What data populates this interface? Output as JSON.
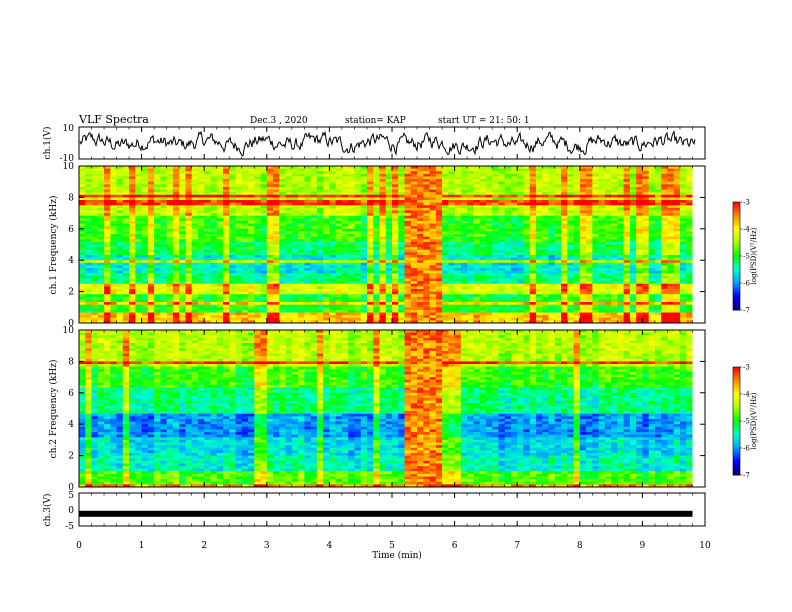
{
  "header": {
    "title": "VLF Spectra",
    "date": "Dec.3 , 2020",
    "station": "station= KAP",
    "start": "start UT = 21: 50: 1"
  },
  "chart_data": [
    {
      "type": "line",
      "name": "ch1-waveform",
      "ylabel": "ch.1(V)",
      "ylim": [
        -10,
        10
      ],
      "yticks": [
        "10",
        "-10"
      ],
      "xlim": [
        0,
        10
      ],
      "line_color": "#000000",
      "description_of_signal": "noisy waveform fluctuating roughly between -6 and +8 V"
    },
    {
      "type": "heatmap",
      "name": "ch1-spectrogram",
      "ylabel": "ch.1 Frequency (kHz)",
      "ylim": [
        0,
        10
      ],
      "yticks": [
        "0",
        "2",
        "4",
        "6",
        "8",
        "10"
      ],
      "xlim": [
        0,
        9.8
      ],
      "colorbar": {
        "label": "log(PSD)(V²/Hz)",
        "range": [
          -7,
          -3
        ],
        "ticks": [
          "-3",
          "-4",
          "-5",
          "-6",
          "-7"
        ],
        "colors": [
          "#000080",
          "#0000ff",
          "#00a0ff",
          "#00ffcc",
          "#00ff00",
          "#aaff00",
          "#ffff00",
          "#ff8800",
          "#ff0000",
          "#ffffff"
        ]
      },
      "bands_khz": [
        {
          "from": 0.0,
          "to": 0.6,
          "level": -3.8
        },
        {
          "from": 0.6,
          "to": 1.8,
          "level": -5.0
        },
        {
          "from": 1.8,
          "to": 2.4,
          "level": -4.2
        },
        {
          "from": 2.4,
          "to": 3.2,
          "level": -5.3
        },
        {
          "from": 3.2,
          "to": 4.4,
          "level": -5.6
        },
        {
          "from": 4.4,
          "to": 5.2,
          "level": -5.2
        },
        {
          "from": 5.2,
          "to": 6.8,
          "level": -4.9
        },
        {
          "from": 6.8,
          "to": 10.0,
          "level": -4.4
        }
      ],
      "burst_interval_min": [
        5.2,
        5.8
      ]
    },
    {
      "type": "heatmap",
      "name": "ch2-spectrogram",
      "ylabel": "ch.2 Frequency (kHz)",
      "ylim": [
        0,
        10
      ],
      "yticks": [
        "0",
        "2",
        "4",
        "6",
        "8",
        "10"
      ],
      "xlim": [
        0,
        9.8
      ],
      "colorbar": {
        "label": "log(PSD)(V²/Hz)",
        "range": [
          -7,
          -3
        ],
        "ticks": [
          "-3",
          "-4",
          "-5",
          "-6",
          "-7"
        ]
      },
      "bands_khz": [
        {
          "from": 0.0,
          "to": 1.0,
          "level": -4.8
        },
        {
          "from": 1.0,
          "to": 2.0,
          "level": -5.5
        },
        {
          "from": 2.0,
          "to": 3.2,
          "level": -5.7
        },
        {
          "from": 3.2,
          "to": 4.6,
          "level": -6.0
        },
        {
          "from": 4.6,
          "to": 6.4,
          "level": -5.3
        },
        {
          "from": 6.4,
          "to": 7.6,
          "level": -4.9
        },
        {
          "from": 7.6,
          "to": 10.0,
          "level": -4.4
        }
      ],
      "burst_interval_min": [
        5.2,
        5.8
      ]
    },
    {
      "type": "line",
      "name": "ch3-signal",
      "ylabel": "ch.3(V)",
      "ylim": [
        -5,
        5
      ],
      "yticks": [
        "5",
        "0",
        "-5"
      ],
      "xlim": [
        0,
        9.8
      ],
      "level_v": -1.3,
      "line_color": "#000000"
    }
  ],
  "x_axis": {
    "label": "Time (min)",
    "ticks": [
      "0",
      "1",
      "2",
      "3",
      "4",
      "5",
      "6",
      "7",
      "8",
      "9",
      "10"
    ]
  }
}
